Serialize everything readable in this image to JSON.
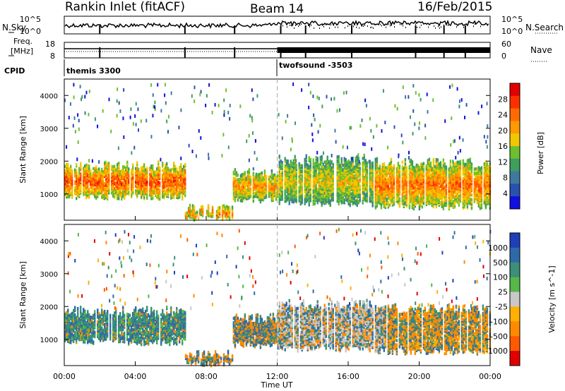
{
  "header": {
    "site": "Rankin Inlet (fitACF)",
    "beam": "Beam 14",
    "date": "16/Feb/2015"
  },
  "noise_panel": {
    "left_label": "N.Sky",
    "left_top": "10^5",
    "left_bottom": "10^0",
    "right_label": "N.Search",
    "right_top": "10^5",
    "right_bottom": "10^0"
  },
  "freq_panel": {
    "left_label_1": "Freq.",
    "left_label_2": "[MHz]",
    "left_top": "18",
    "left_bottom": "8",
    "right_label": "Nave",
    "right_top": "60",
    "right_bottom": "0"
  },
  "cpid": {
    "label": "CPID",
    "modes": [
      {
        "name": "themis 3300",
        "start_hour": 0
      },
      {
        "name": "twofsound -3503",
        "start_hour": 12
      }
    ]
  },
  "chart_data": [
    {
      "type": "heatmap",
      "name": "power",
      "xlabel": "Time UT",
      "ylabel": "Slant Range [km]",
      "xlim": [
        0,
        24
      ],
      "ylim": [
        200,
        4500
      ],
      "yticks": [
        "1000",
        "2000",
        "3000",
        "4000"
      ],
      "colorbar_label": "Power [dB]",
      "colorbar_ticks": [
        "4",
        "8",
        "12",
        "16",
        "20",
        "24",
        "28"
      ],
      "colorbar_range": [
        0,
        32
      ],
      "colors": [
        "#1010e0",
        "#2a50b0",
        "#3f7a9e",
        "#3e9e5c",
        "#6cc030",
        "#f0c800",
        "#ff9a00",
        "#ff6a00",
        "#ff3000",
        "#e00000"
      ],
      "range_hours": [
        {
          "start": 0.0,
          "end": 6.8,
          "low": 900,
          "high": 1800,
          "level_core": 26
        },
        {
          "start": 6.8,
          "end": 9.5,
          "low": 250,
          "high": 500,
          "level_core": 24
        },
        {
          "start": 9.5,
          "end": 12.0,
          "low": 800,
          "high": 1600,
          "level_core": 22
        },
        {
          "start": 12.0,
          "end": 17.5,
          "low": 700,
          "high": 2000,
          "level_core": 18
        },
        {
          "start": 17.5,
          "end": 24.0,
          "low": 600,
          "high": 1900,
          "level_core": 24
        }
      ]
    },
    {
      "type": "heatmap",
      "name": "velocity",
      "xlabel": "Time UT",
      "ylabel": "Slant Range [km]",
      "xlim": [
        0,
        24
      ],
      "ylim": [
        200,
        4500
      ],
      "xticks": [
        "00:00",
        "04:00",
        "08:00",
        "12:00",
        "16:00",
        "20:00",
        "00:00"
      ],
      "yticks": [
        "1000",
        "2000",
        "3000",
        "4000"
      ],
      "colorbar_label": "Velocity [m s^-1]",
      "colorbar_ticks": [
        "1000",
        "500",
        "100",
        "25",
        "-25",
        "-100",
        "-500",
        "-1000"
      ],
      "colors": [
        "#1f3fb8",
        "#2f6aa8",
        "#3c8f78",
        "#55b848",
        "#c8c8c8",
        "#ffb000",
        "#ff8a00",
        "#ff5a00",
        "#e00000"
      ]
    }
  ],
  "time_axis": {
    "label": "Time UT",
    "ticks": [
      "00:00",
      "04:00",
      "08:00",
      "12:00",
      "16:00",
      "20:00",
      "00:00"
    ]
  }
}
